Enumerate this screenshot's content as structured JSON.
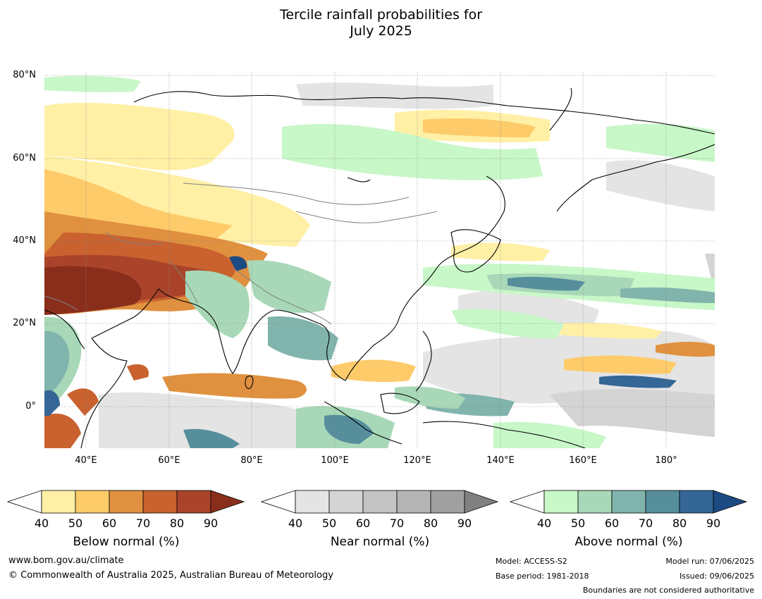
{
  "title_line1": "Tercile rainfall probabilities for",
  "title_line2": "July 2025",
  "lat_labels": [
    "80°N",
    "60°N",
    "40°N",
    "20°N",
    "0°"
  ],
  "lon_labels": [
    "40°E",
    "60°E",
    "80°E",
    "100°E",
    "120°E",
    "140°E",
    "160°E",
    "180°"
  ],
  "colors": {
    "below": [
      "#fff0a6",
      "#fecb6a",
      "#e0913f",
      "#c9622f",
      "#a9442a",
      "#8a2e1c"
    ],
    "near": [
      "#e4e4e4",
      "#d4d4d4",
      "#c4c4c4",
      "#b4b4b4",
      "#a0a0a0",
      "#808080"
    ],
    "above": [
      "#c8f7c8",
      "#a8d8b8",
      "#80b4ac",
      "#568e9c",
      "#346696",
      "#1c4a82"
    ],
    "coast": "#000000",
    "borders": "#808080"
  },
  "colorbars": [
    {
      "title": "Below normal (%)",
      "ticks": [
        "40",
        "50",
        "60",
        "70",
        "80",
        "90"
      ]
    },
    {
      "title": "Near normal (%)",
      "ticks": [
        "40",
        "50",
        "60",
        "70",
        "80",
        "90"
      ]
    },
    {
      "title": "Above normal (%)",
      "ticks": [
        "40",
        "50",
        "60",
        "70",
        "80",
        "90"
      ]
    }
  ],
  "footer": {
    "website": "www.bom.gov.au/climate",
    "copyright": "© Commonwealth of Australia 2025, Australian Bureau of Meteorology",
    "model": "Model: ACCESS-S2",
    "base_period": "Base period: 1981-2018",
    "model_run": "Model run: 07/06/2025",
    "issued": "Issued: 09/06/2025",
    "disclaimer": "Boundaries are not considered authoritative"
  }
}
